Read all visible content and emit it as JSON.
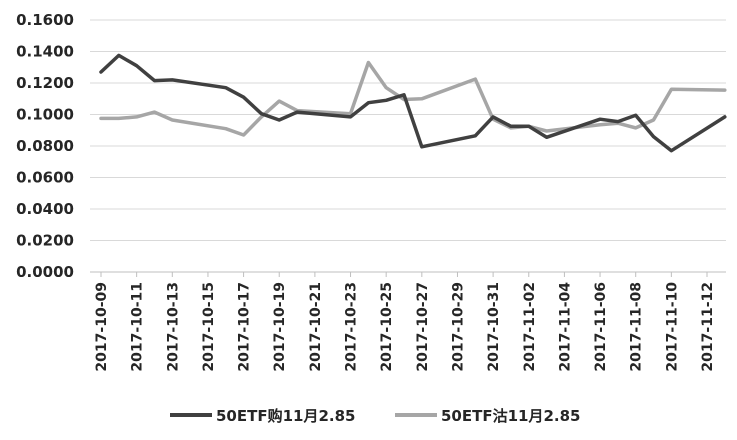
{
  "chart_data": {
    "type": "line",
    "title": "",
    "xlabel": "",
    "ylabel": "",
    "ylim": [
      0,
      0.16
    ],
    "yticks": [
      "0.0000",
      "0.0200",
      "0.0400",
      "0.0600",
      "0.0800",
      "0.1000",
      "0.1200",
      "0.1400",
      "0.1600"
    ],
    "grid": true,
    "legend_position": "bottom",
    "x_tick_labels": [
      "2017-10-09",
      "2017-10-11",
      "2017-10-13",
      "2017-10-15",
      "2017-10-17",
      "2017-10-19",
      "2017-10-21",
      "2017-10-23",
      "2017-10-25",
      "2017-10-27",
      "2017-10-29",
      "2017-10-31",
      "2017-11-02",
      "2017-11-04",
      "2017-11-06",
      "2017-11-08",
      "2017-11-10",
      "2017-11-12"
    ],
    "x": [
      "2017-10-09",
      "2017-10-10",
      "2017-10-11",
      "2017-10-12",
      "2017-10-13",
      "2017-10-16",
      "2017-10-17",
      "2017-10-18",
      "2017-10-19",
      "2017-10-20",
      "2017-10-23",
      "2017-10-24",
      "2017-10-25",
      "2017-10-26",
      "2017-10-27",
      "2017-10-30",
      "2017-10-31",
      "2017-11-01",
      "2017-11-02",
      "2017-11-03",
      "2017-11-06",
      "2017-11-07",
      "2017-11-08",
      "2017-11-09",
      "2017-11-10",
      "2017-11-13"
    ],
    "series": [
      {
        "name": "50ETF购11月2.85",
        "color": "#404040",
        "values": [
          0.127,
          0.1375,
          0.131,
          0.1215,
          0.122,
          0.117,
          0.111,
          0.1005,
          0.0965,
          0.1015,
          0.0985,
          0.1075,
          0.109,
          0.1125,
          0.0795,
          0.0865,
          0.0985,
          0.0925,
          0.0925,
          0.0855,
          0.097,
          0.0955,
          0.0995,
          0.086,
          0.077,
          0.0985
        ]
      },
      {
        "name": "50ETF沽11月2.85",
        "color": "#a6a6a6",
        "values": [
          0.0975,
          0.0975,
          0.0985,
          0.1015,
          0.0965,
          0.091,
          0.087,
          0.0985,
          0.1085,
          0.1025,
          0.1005,
          0.133,
          0.117,
          0.1095,
          0.11,
          0.1225,
          0.097,
          0.0915,
          0.0925,
          0.0895,
          0.0935,
          0.0945,
          0.0915,
          0.0965,
          0.116,
          0.1155
        ]
      }
    ]
  }
}
